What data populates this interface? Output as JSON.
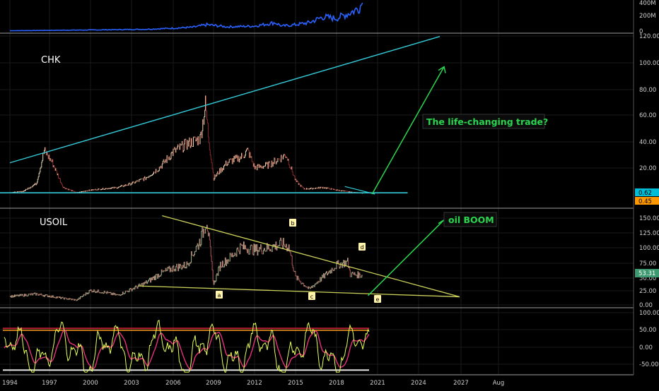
{
  "colors": {
    "background": "#000000",
    "grid": "#1a1a1a",
    "separator": "#9e9e9e",
    "axis_text": "#cfcfcf",
    "volume": "#2962ff",
    "price_up": "#e8d7b0",
    "price_down": "#8a2a2a",
    "trend_cyan": "#33c9d6",
    "trend_yellow": "#cdd35a",
    "arrow_green": "#2bd64f",
    "annotation_text": "#2bd64f",
    "wave_label_bg": "#fff4a8",
    "rsi_fast": "#e8ff5a",
    "rsi_slow": "#e8317d",
    "rsi_line_red": "#d8213a",
    "rsi_line_orange": "#ff9a1a",
    "rsi_line_white": "#e6e6e6",
    "badge_cyan": "#00bcd4",
    "badge_orange": "#ff9800",
    "badge_green": "#3d9970"
  },
  "chart_data": [
    {
      "type": "area",
      "panel": "volume",
      "x": [
        1994,
        1996,
        1998,
        2000,
        2002,
        2004,
        2006,
        2007.5,
        2008.5,
        2010,
        2012,
        2013.5,
        2014,
        2015,
        2016,
        2017,
        2018,
        2019,
        2019.6,
        2019.9
      ],
      "values": [
        5,
        8,
        12,
        15,
        20,
        25,
        40,
        55,
        90,
        60,
        70,
        120,
        70,
        90,
        120,
        200,
        180,
        260,
        320,
        400
      ],
      "ylim": [
        0,
        420
      ],
      "tick_labels": [
        "400M",
        "200M",
        "0"
      ]
    },
    {
      "type": "line",
      "panel": "price",
      "title": "CHK",
      "x": [
        1994,
        1995,
        1996,
        1996.6,
        1997.2,
        1998,
        1999,
        2000,
        2002,
        2003,
        2004,
        2005,
        2006,
        2007,
        2008,
        2008.4,
        2008.6,
        2009,
        2010,
        2011,
        2011.5,
        2012,
        2013,
        2014,
        2014.3,
        2015,
        2015.6,
        2016,
        2017,
        2018,
        2019,
        2019.9
      ],
      "values": [
        1,
        2,
        8,
        33,
        24,
        5,
        1,
        3,
        5,
        8,
        12,
        20,
        32,
        38,
        42,
        68,
        45,
        12,
        24,
        28,
        33,
        20,
        22,
        28,
        30,
        10,
        4,
        4,
        5,
        3,
        1.5,
        0.6
      ],
      "ylim": [
        -10,
        122
      ],
      "tick_labels": [
        "120.00",
        "100.00",
        "80.00",
        "60.00",
        "40.00",
        "20.00"
      ],
      "price_badges": [
        "0.62",
        "0.45"
      ],
      "annotation": "The life-changing trade?"
    },
    {
      "type": "line",
      "panel": "price",
      "title": "USOIL",
      "x": [
        1994,
        1996,
        1998,
        1999,
        2000,
        2001,
        2002,
        2003,
        2004,
        2005,
        2006,
        2007,
        2008,
        2008.5,
        2009,
        2009.5,
        2010,
        2011,
        2012,
        2013,
        2014,
        2014.5,
        2015,
        2016,
        2017,
        2018,
        2018.8,
        2019,
        2019.9
      ],
      "values": [
        18,
        22,
        15,
        12,
        28,
        25,
        20,
        30,
        40,
        55,
        65,
        70,
        110,
        145,
        38,
        70,
        78,
        100,
        95,
        98,
        105,
        100,
        50,
        30,
        50,
        70,
        75,
        55,
        53
      ],
      "ylim": [
        0,
        162
      ],
      "tick_labels": [
        "150.00",
        "125.00",
        "100.00",
        "75.00",
        "50.00",
        "25.00",
        "0.00"
      ],
      "price_badge": "53.31",
      "annotation": "oil BOOM",
      "wave_labels": [
        "a",
        "b",
        "c",
        "d",
        "e"
      ]
    },
    {
      "type": "line",
      "panel": "oscillator",
      "ylim": [
        -60,
        105
      ],
      "tick_labels": [
        "100.00",
        "50.00",
        "0.00",
        "-50.00"
      ],
      "levels": [
        55,
        50,
        -50
      ]
    }
  ],
  "x_axis": {
    "ticks": [
      "1994",
      "1997",
      "2000",
      "2003",
      "2006",
      "2009",
      "2012",
      "2015",
      "2018",
      "2021",
      "2024",
      "2027",
      "Aug"
    ]
  }
}
